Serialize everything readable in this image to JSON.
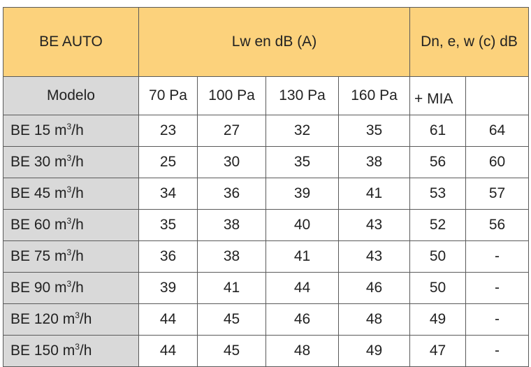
{
  "header": {
    "product": "BE AUTO",
    "lw_label": "Lw en dB (A)",
    "dn_label": "Dn, e, w (c) dB"
  },
  "subheader": {
    "model_label": "Modelo",
    "pressures": [
      "70 Pa",
      "100 Pa",
      "130 Pa",
      "160 Pa"
    ],
    "mia_label": "+ MIA",
    "extra_label": ""
  },
  "rows": [
    {
      "model": "BE 15 m",
      "unit": "/h",
      "lw": [
        "23",
        "27",
        "32",
        "35"
      ],
      "dn": [
        "61",
        "64"
      ]
    },
    {
      "model": "BE 30 m",
      "unit": "/h",
      "lw": [
        "25",
        "30",
        "35",
        "38"
      ],
      "dn": [
        "56",
        "60"
      ]
    },
    {
      "model": "BE 45 m",
      "unit": "/h",
      "lw": [
        "34",
        "36",
        "39",
        "41"
      ],
      "dn": [
        "53",
        "57"
      ]
    },
    {
      "model": "BE 60 m",
      "unit": "/h",
      "lw": [
        "35",
        "38",
        "40",
        "43"
      ],
      "dn": [
        "52",
        "56"
      ]
    },
    {
      "model": "BE 75 m",
      "unit": "/h",
      "lw": [
        "36",
        "38",
        "41",
        "43"
      ],
      "dn": [
        "50",
        "-"
      ]
    },
    {
      "model": "BE 90 m",
      "unit": "/h",
      "lw": [
        "39",
        "41",
        "44",
        "46"
      ],
      "dn": [
        "50",
        "-"
      ]
    },
    {
      "model": "BE 120 m",
      "unit": "/h",
      "lw": [
        "44",
        "45",
        "46",
        "48"
      ],
      "dn": [
        "49",
        "-"
      ]
    },
    {
      "model": "BE 150 m",
      "unit": "/h",
      "lw": [
        "44",
        "45",
        "48",
        "49"
      ],
      "dn": [
        "47",
        "-"
      ]
    }
  ],
  "superscript": "3"
}
